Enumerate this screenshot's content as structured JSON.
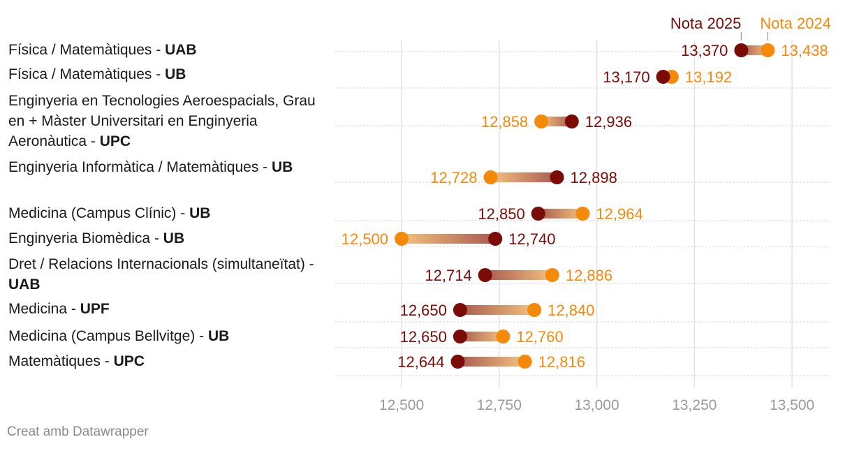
{
  "chart_data": {
    "type": "dot-range",
    "x_ticks": [
      12500,
      12750,
      13000,
      13250,
      13500
    ],
    "x_tick_labels": [
      "12,500",
      "12,750",
      "13,000",
      "13,250",
      "13,500"
    ],
    "xlim": [
      12330,
      13600
    ],
    "legend": {
      "nota2025": "Nota 2025",
      "nota2024": "Nota 2024"
    },
    "colors": {
      "nota2025": "#7a0b06",
      "nota2024": "#f5890a",
      "grid": "#e2e2e2",
      "row_line": "#d6d6d6"
    },
    "rows": [
      {
        "name": "Física / Matemàtiques - ",
        "uni": "UAB",
        "nota2025": 13370,
        "nota2024": 13438,
        "label2025": "13,370",
        "label2024": "13,438"
      },
      {
        "name": "Física / Matemàtiques - ",
        "uni": "UB",
        "nota2025": 13170,
        "nota2024": 13192,
        "label2025": "13,170",
        "label2024": "13,192"
      },
      {
        "name": "Enginyeria en Tecnologies Aeroespacials, Grau en + Màster Universitari en Enginyeria Aeronàutica - ",
        "uni": "UPC",
        "nota2025": 12936,
        "nota2024": 12858,
        "label2025": "12,936",
        "label2024": "12,858"
      },
      {
        "name": "Enginyeria Informàtica / Matemàtiques - ",
        "uni": "UB",
        "nota2025": 12898,
        "nota2024": 12728,
        "label2025": "12,898",
        "label2024": "12,728"
      },
      {
        "name": "Medicina (Campus Clínic) - ",
        "uni": "UB",
        "nota2025": 12850,
        "nota2024": 12964,
        "label2025": "12,850",
        "label2024": "12,964"
      },
      {
        "name": "Enginyeria Biomèdica - ",
        "uni": "UB",
        "nota2025": 12740,
        "nota2024": 12500,
        "label2025": "12,740",
        "label2024": "12,500"
      },
      {
        "name": "Dret / Relacions Internacionals (simultaneïtat) - ",
        "uni": "UAB",
        "nota2025": 12714,
        "nota2024": 12886,
        "label2025": "12,714",
        "label2024": "12,886"
      },
      {
        "name": "Medicina - ",
        "uni": "UPF",
        "nota2025": 12650,
        "nota2024": 12840,
        "label2025": "12,650",
        "label2024": "12,840"
      },
      {
        "name": "Medicina (Campus Bellvitge) - ",
        "uni": "UB",
        "nota2025": 12650,
        "nota2024": 12760,
        "label2025": "12,650",
        "label2024": "12,760"
      },
      {
        "name": "Matemàtiques - ",
        "uni": "UPC",
        "nota2025": 12644,
        "nota2024": 12816,
        "label2025": "12,644",
        "label2024": "12,816"
      }
    ]
  },
  "credit": "Creat amb Datawrapper"
}
